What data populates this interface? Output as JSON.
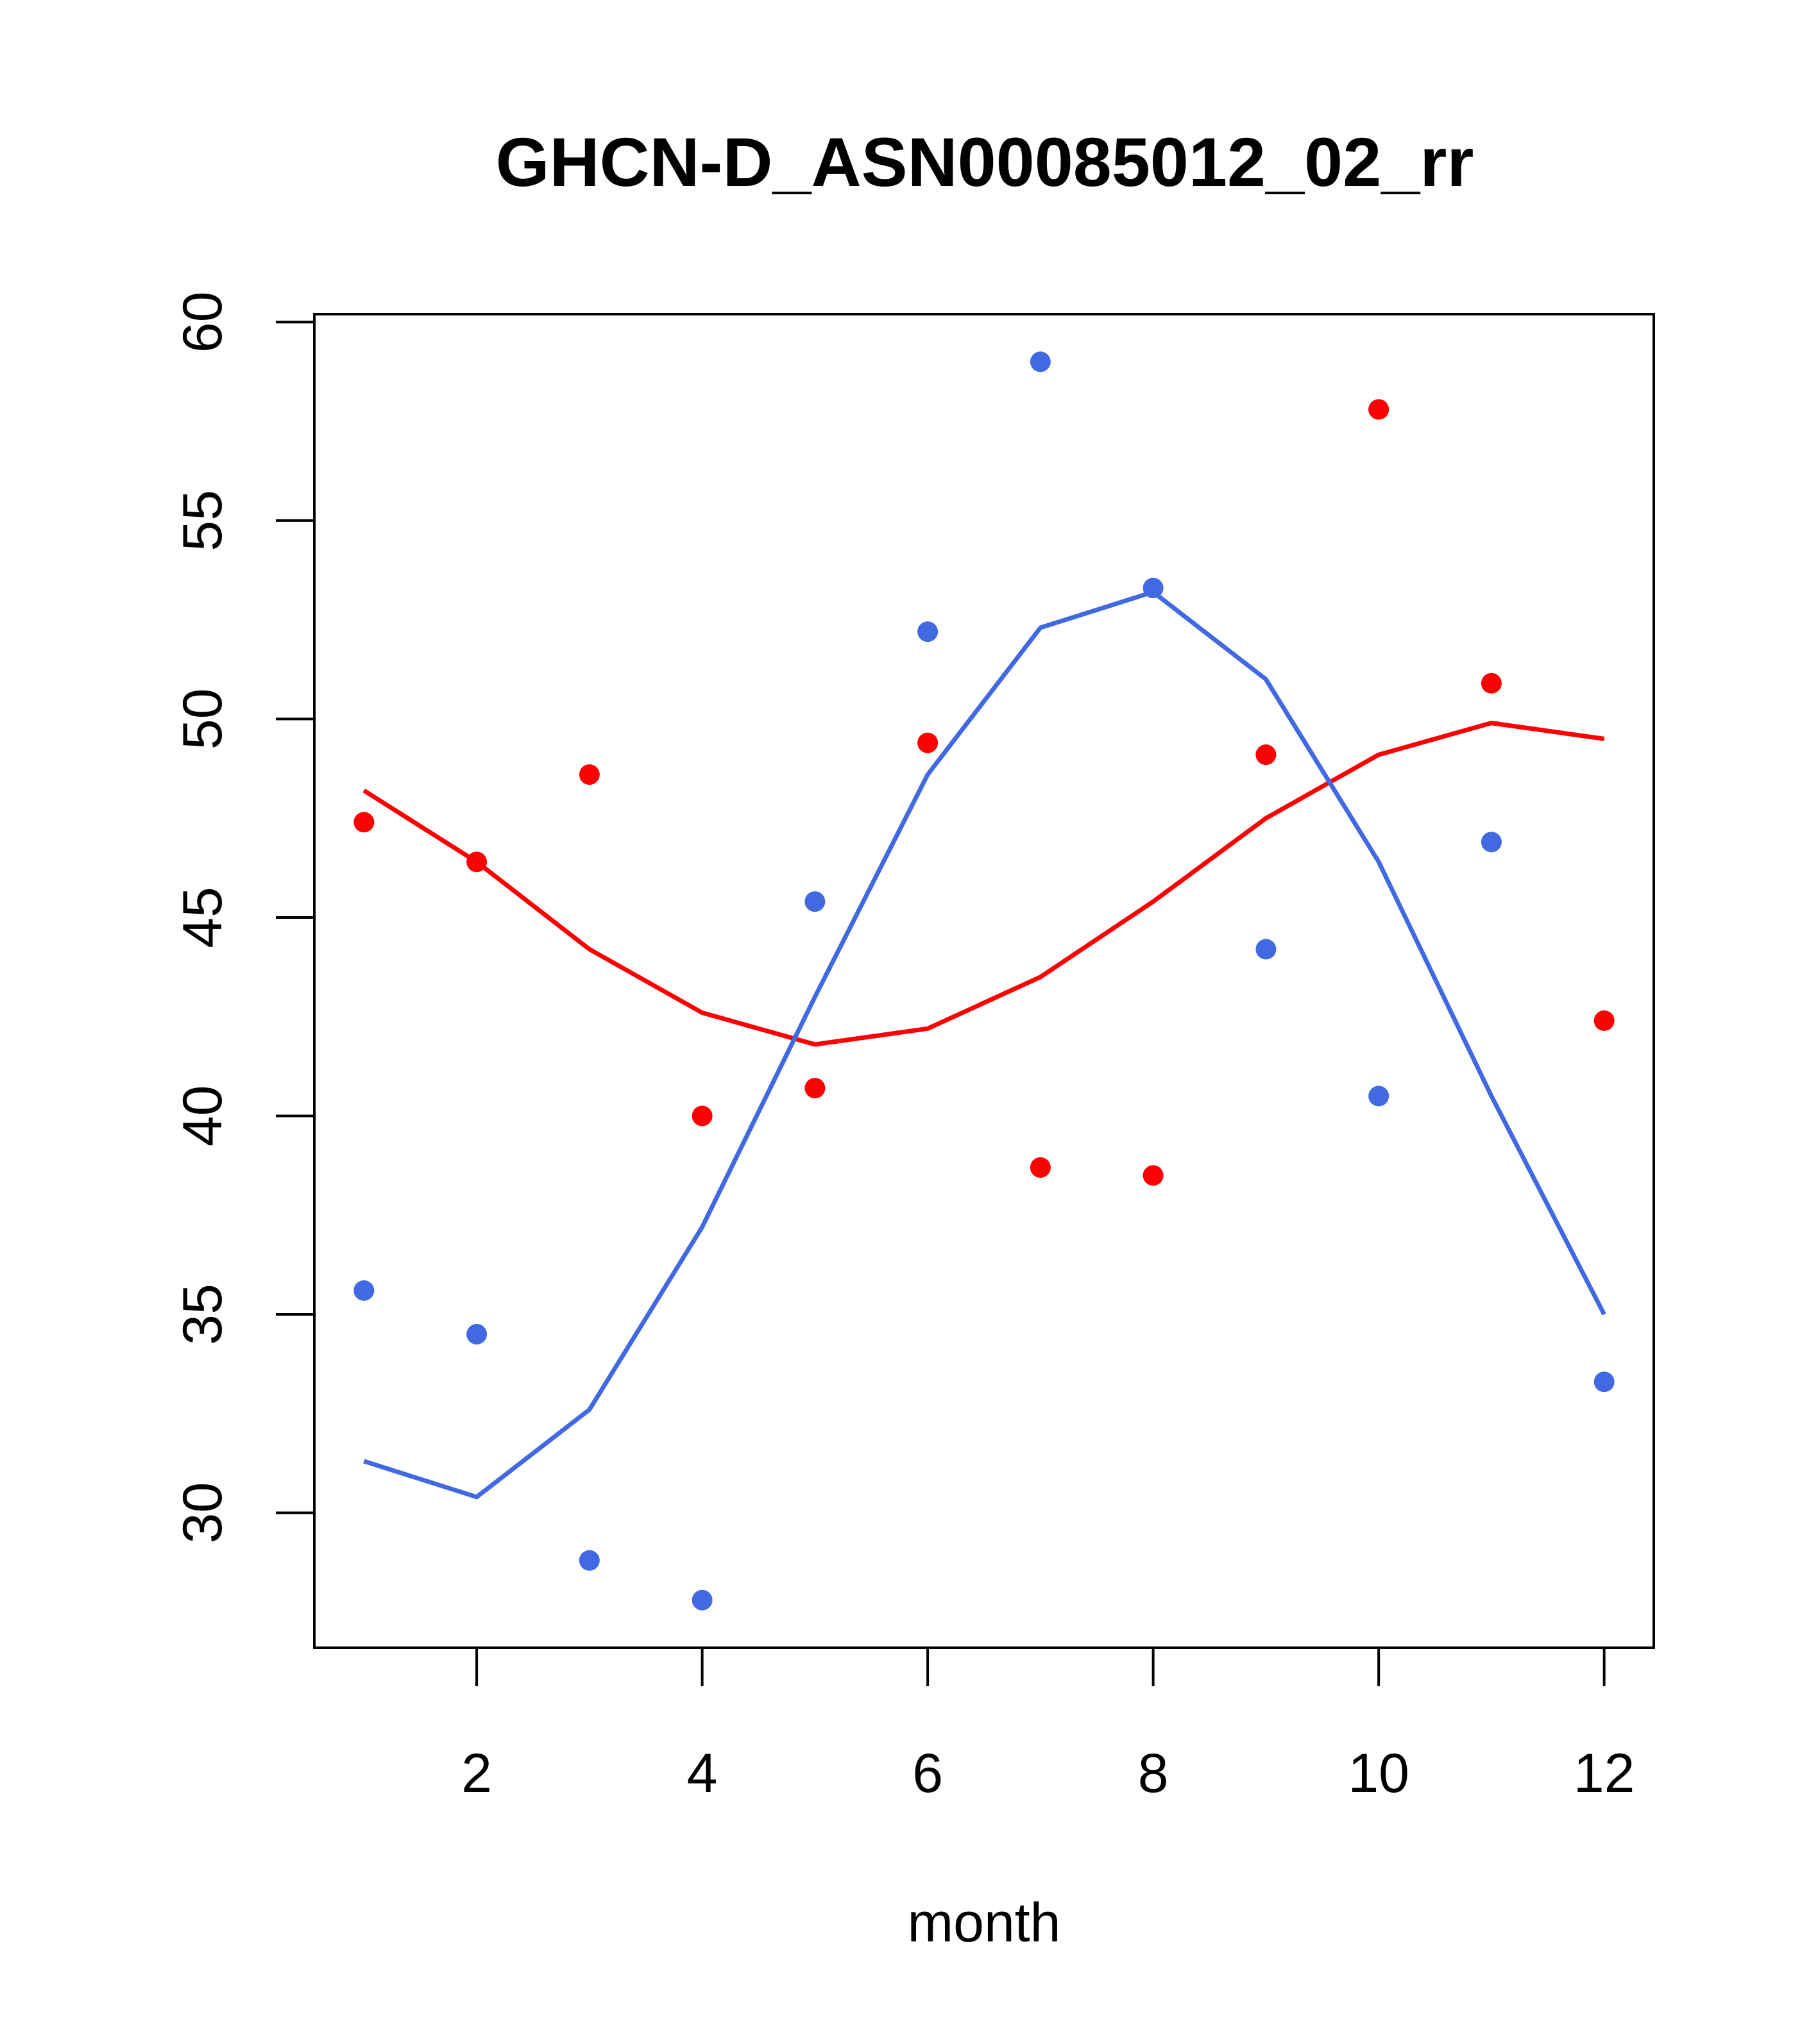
{
  "chart_data": {
    "type": "scatter",
    "title": "GHCN-D_ASN00085012_02_rr",
    "xlabel": "month",
    "ylabel": "",
    "xlim": [
      0.56,
      12.44
    ],
    "ylim": [
      26.6,
      60.2
    ],
    "xticks": [
      2,
      4,
      6,
      8,
      10,
      12
    ],
    "yticks": [
      30,
      35,
      40,
      45,
      50,
      55,
      60
    ],
    "grid": false,
    "legend": "none",
    "series": [
      {
        "kind": "points",
        "color": "#FF0000",
        "x": [
          1,
          2,
          3,
          4,
          5,
          6,
          7,
          8,
          9,
          10,
          11,
          12
        ],
        "y": [
          47.4,
          46.4,
          48.6,
          40.0,
          40.7,
          49.4,
          38.7,
          38.5,
          49.1,
          57.8,
          50.9,
          42.4
        ]
      },
      {
        "kind": "points",
        "color": "#4169E1",
        "x": [
          1,
          2,
          3,
          4,
          5,
          6,
          7,
          8,
          9,
          10,
          11,
          12
        ],
        "y": [
          35.6,
          34.5,
          28.8,
          27.8,
          45.4,
          52.2,
          59.0,
          53.3,
          44.2,
          40.5,
          46.9,
          33.3
        ]
      },
      {
        "kind": "line",
        "color": "#FF0000",
        "x": [
          1,
          2,
          3,
          4,
          5,
          6,
          7,
          8,
          9,
          10,
          11,
          12
        ],
        "y": [
          48.2,
          46.4,
          44.2,
          42.6,
          41.8,
          42.2,
          43.5,
          45.4,
          47.5,
          49.1,
          49.9,
          49.5
        ]
      },
      {
        "kind": "line",
        "color": "#4169E1",
        "x": [
          1,
          2,
          3,
          4,
          5,
          6,
          7,
          8,
          9,
          10,
          11,
          12
        ],
        "y": [
          31.3,
          30.4,
          32.6,
          37.2,
          43.0,
          48.6,
          52.3,
          53.2,
          51.0,
          46.4,
          40.5,
          35.0
        ]
      }
    ]
  }
}
